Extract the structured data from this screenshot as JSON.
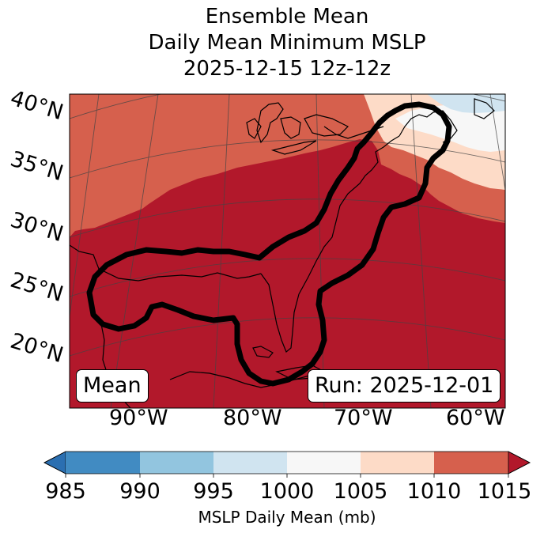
{
  "title": {
    "line1": "Ensemble Mean",
    "line2": "Daily Mean Minimum MSLP",
    "line3": "2025-12-15 12z-12z"
  },
  "map": {
    "lat_labels": [
      "40°N",
      "35°N",
      "30°N",
      "25°N",
      "20°N"
    ],
    "lon_labels": [
      "90°W",
      "80°W",
      "70°W",
      "60°W"
    ],
    "mean_label": "Mean",
    "run_label": "Run: 2025-12-01"
  },
  "colorbar": {
    "ticks": [
      "985",
      "990",
      "995",
      "1000",
      "1005",
      "1010",
      "1015"
    ],
    "label": "MSLP Daily Mean (mb)",
    "colors": [
      "#2b6fb1",
      "#418bc2",
      "#92c5df",
      "#d0e4f0",
      "#f7f7f7",
      "#fddbc7",
      "#d6604d",
      "#b2182b"
    ]
  }
}
